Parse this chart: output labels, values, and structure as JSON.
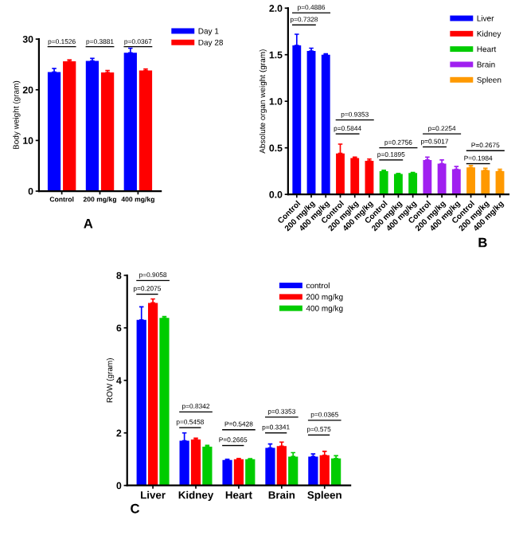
{
  "chart_data": [
    {
      "type": "bar",
      "ylabel": "Body weight (gram)",
      "categories": [
        "Control",
        "200 mg/kg",
        "400 mg/kg"
      ],
      "series": [
        {
          "name": "Day 1",
          "color": "#0000ff",
          "values": [
            23.5,
            25.7,
            27.3
          ],
          "errors": [
            0.7,
            0.5,
            0.9
          ]
        },
        {
          "name": "Day 28",
          "color": "#ff0000",
          "values": [
            25.6,
            23.4,
            23.8
          ],
          "errors": [
            0.3,
            0.4,
            0.3
          ]
        }
      ],
      "ylim": [
        0,
        30
      ],
      "yticks": [
        0,
        10,
        20,
        30
      ],
      "legend": "right",
      "grid": false,
      "annotations": [
        "p=0.1526",
        "p=0.3881",
        "p=0.0367",
        "A"
      ]
    },
    {
      "type": "bar",
      "ylabel": "Absolute organ weight (gram)",
      "categories": [
        "Control",
        "200 mg/kg",
        "400 mg/kg",
        "Control",
        "200 mg/kg",
        "400 mg/kg",
        "Control",
        "200 mg/kg",
        "400 mg/kg",
        "Control",
        "200 mg/kg",
        "400 mg/kg",
        "Control",
        "200 mg/kg",
        "400 mg/kg"
      ],
      "series": [
        {
          "name": "Liver",
          "color": "#0000ff",
          "values": [
            1.6,
            1.54,
            1.5,
            null,
            null,
            null,
            null,
            null,
            null,
            null,
            null,
            null,
            null,
            null,
            null
          ],
          "errors": [
            0.12,
            0.03,
            0.01,
            null,
            null,
            null,
            null,
            null,
            null,
            null,
            null,
            null,
            null,
            null,
            null
          ]
        },
        {
          "name": "Kidney",
          "color": "#ff0000",
          "values": [
            null,
            null,
            null,
            0.44,
            0.39,
            0.36,
            null,
            null,
            null,
            null,
            null,
            null,
            null,
            null,
            null
          ],
          "errors": [
            null,
            null,
            null,
            0.1,
            0.01,
            0.02,
            null,
            null,
            null,
            null,
            null,
            null,
            null,
            null,
            null
          ]
        },
        {
          "name": "Heart",
          "color": "#00cc00",
          "values": [
            null,
            null,
            null,
            null,
            null,
            null,
            0.25,
            0.22,
            0.23,
            null,
            null,
            null,
            null,
            null,
            null
          ],
          "errors": [
            null,
            null,
            null,
            null,
            null,
            null,
            0.01,
            0.005,
            0.005,
            null,
            null,
            null,
            null,
            null,
            null
          ]
        },
        {
          "name": "Brain",
          "color": "#a020f0",
          "values": [
            null,
            null,
            null,
            null,
            null,
            null,
            null,
            null,
            null,
            0.37,
            0.33,
            0.27,
            null,
            null,
            null
          ],
          "errors": [
            null,
            null,
            null,
            null,
            null,
            null,
            null,
            null,
            null,
            0.03,
            0.04,
            0.03,
            null,
            null,
            null
          ]
        },
        {
          "name": "Spleen",
          "color": "#ff9900",
          "values": [
            null,
            null,
            null,
            null,
            null,
            null,
            null,
            null,
            null,
            null,
            null,
            null,
            0.29,
            0.26,
            0.25
          ],
          "errors": [
            null,
            null,
            null,
            null,
            null,
            null,
            null,
            null,
            null,
            null,
            null,
            null,
            0.02,
            0.02,
            0.02
          ]
        }
      ],
      "ylim": [
        0,
        2
      ],
      "yticks": [
        {
          "value": 0,
          "label": "0.0"
        },
        0.5,
        {
          "value": 1,
          "label": "1.0"
        },
        1.5,
        {
          "value": 2,
          "label": "2.0"
        }
      ],
      "legend": "top right",
      "grid": false,
      "annotations": [
        "p=0.4886",
        "p=0.7328",
        "p=0.9353",
        "p=0.5844",
        "p=0.2756",
        "p=0.1895",
        "p=0.2254",
        "p=0.5017",
        "P=0.2675",
        "P=0.1984",
        "B"
      ]
    },
    {
      "type": "bar",
      "ylabel": "ROW (gram)",
      "categories": [
        "Liver",
        "Kidney",
        "Heart",
        "Brain",
        "Spleen"
      ],
      "series": [
        {
          "name": "control",
          "color": "#0000ff",
          "values": [
            6.3,
            1.7,
            0.97,
            1.43,
            1.1
          ],
          "errors": [
            0.5,
            0.3,
            0.03,
            0.15,
            0.1
          ]
        },
        {
          "name": "200 mg/kg",
          "color": "#ff0000",
          "values": [
            6.95,
            1.75,
            1.0,
            1.5,
            1.15
          ],
          "errors": [
            0.15,
            0.05,
            0.03,
            0.15,
            0.15
          ]
        },
        {
          "name": "400 mg/kg",
          "color": "#00cc00",
          "values": [
            6.38,
            1.48,
            1.0,
            1.1,
            1.03
          ],
          "errors": [
            0.05,
            0.05,
            0.02,
            0.15,
            0.1
          ]
        }
      ],
      "ylim": [
        0,
        8
      ],
      "yticks": [
        0,
        2,
        4,
        6,
        8
      ],
      "legend": "top right",
      "grid": false,
      "annotations": [
        "p=0.9058",
        "p=0.2075",
        "p=0.8342",
        "p=0.5458",
        "P=0.5428",
        "P=0.2665",
        "p=0.3353",
        "p=0.3341",
        "p=0.0365",
        "p=0.575",
        "C"
      ]
    }
  ]
}
